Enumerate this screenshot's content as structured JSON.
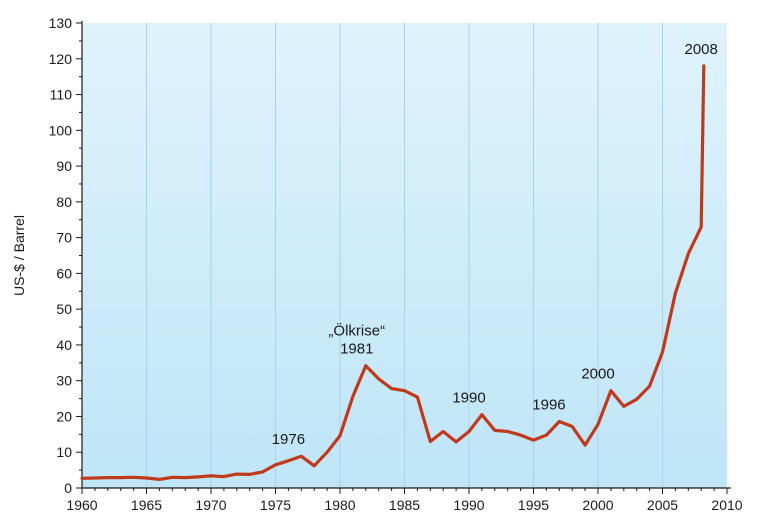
{
  "chart_data": {
    "type": "line",
    "title": "",
    "xlabel": "",
    "ylabel": "US-$ / Barrel",
    "xlim": [
      1960,
      2010
    ],
    "ylim": [
      0,
      130
    ],
    "x_ticks": [
      1960,
      1965,
      1970,
      1975,
      1980,
      1985,
      1990,
      1995,
      2000,
      2005,
      2010
    ],
    "y_ticks": [
      0,
      10,
      20,
      30,
      40,
      50,
      60,
      70,
      80,
      90,
      100,
      110,
      120,
      130
    ],
    "grid": true,
    "background": {
      "top": "#dff3fc",
      "bottom": "#bfe5f7"
    },
    "series": [
      {
        "color": "#c0391a",
        "x": [
          1960,
          1961,
          1962,
          1963,
          1964,
          1965,
          1966,
          1967,
          1968,
          1969,
          1970,
          1971,
          1972,
          1973,
          1974,
          1975,
          1976,
          1977,
          1978,
          1979,
          1980,
          1981,
          1982,
          1983,
          1984,
          1985,
          1986,
          1987,
          1988,
          1989,
          1990,
          1991,
          1992,
          1993,
          1994,
          1995,
          1996,
          1997,
          1998,
          1999,
          2000,
          2001,
          2002,
          2003,
          2004,
          2005,
          2006,
          2007,
          2008,
          2008.2
        ],
        "y": [
          2.7,
          2.8,
          2.9,
          2.9,
          3.0,
          2.8,
          2.4,
          3.0,
          2.9,
          3.1,
          3.4,
          3.2,
          3.9,
          3.8,
          4.5,
          6.5,
          7.6,
          8.9,
          6.2,
          10.0,
          14.6,
          25.6,
          34.2,
          30.5,
          27.8,
          27.2,
          25.4,
          13.0,
          15.8,
          12.9,
          15.8,
          20.5,
          16.1,
          15.8,
          14.8,
          13.4,
          14.8,
          18.6,
          17.2,
          12.0,
          17.8,
          27.2,
          22.8,
          24.8,
          28.5,
          38.0,
          54.5,
          65.5,
          73.0,
          118.0
        ]
      }
    ],
    "annotations": [
      {
        "lines": [
          "1976"
        ],
        "x": 1976,
        "y": 9
      },
      {
        "lines": [
          "„Ölkrise“",
          "1981"
        ],
        "x": 1981.3,
        "y": 34.2
      },
      {
        "lines": [
          "1990"
        ],
        "x": 1990,
        "y": 20.5
      },
      {
        "lines": [
          "1996"
        ],
        "x": 1996.2,
        "y": 18.6
      },
      {
        "lines": [
          "2000"
        ],
        "x": 2000,
        "y": 27.2
      },
      {
        "lines": [
          "2008"
        ],
        "x": 2008,
        "y": 118
      }
    ]
  }
}
